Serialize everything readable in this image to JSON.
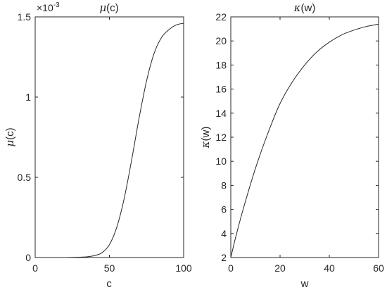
{
  "chart_data": [
    {
      "type": "line",
      "title_symbol": "μ",
      "title_rest": "(c)",
      "xlabel": "c",
      "ylabel_symbol": "μ",
      "ylabel_rest": "(c)",
      "xlim": [
        0,
        100
      ],
      "ylim": [
        0,
        0.0015
      ],
      "xticks": [
        0,
        50,
        100
      ],
      "xtick_labels": [
        "0",
        "50",
        "100"
      ],
      "yticks": [
        0,
        0.0005,
        0.001,
        0.0015
      ],
      "ytick_labels": [
        "0",
        "0.5",
        "1",
        "1.5"
      ],
      "exponent_base": "×10",
      "exponent_power": "-3",
      "grid": false,
      "series": [
        {
          "x": [
            0,
            10,
            20,
            30,
            35,
            40,
            45,
            50,
            55,
            60,
            65,
            70,
            75,
            80,
            85,
            90,
            95,
            100
          ],
          "y": [
            0,
            0,
            0,
            2e-06,
            5e-06,
            1.2e-05,
            3e-05,
            8e-05,
            0.00019,
            0.00037,
            0.00061,
            0.00087,
            0.0011,
            0.00127,
            0.00137,
            0.00142,
            0.00145,
            0.00146
          ]
        }
      ]
    },
    {
      "type": "line",
      "title_symbol": "κ",
      "title_rest": "(w)",
      "xlabel": "w",
      "ylabel_symbol": "κ",
      "ylabel_rest": "(w)",
      "xlim": [
        0,
        60
      ],
      "ylim": [
        2,
        22
      ],
      "xticks": [
        0,
        20,
        40,
        60
      ],
      "xtick_labels": [
        "0",
        "20",
        "40",
        "60"
      ],
      "yticks": [
        2,
        4,
        6,
        8,
        10,
        12,
        14,
        16,
        18,
        20,
        22
      ],
      "ytick_labels": [
        "2",
        "4",
        "6",
        "8",
        "10",
        "12",
        "14",
        "16",
        "18",
        "20",
        "22"
      ],
      "grid": false,
      "series": [
        {
          "x": [
            0,
            2,
            5,
            10,
            15,
            20,
            25,
            30,
            35,
            40,
            45,
            50,
            55,
            60
          ],
          "y": [
            2.0,
            3.7,
            6.0,
            9.4,
            12.3,
            14.8,
            16.6,
            18.0,
            19.1,
            19.9,
            20.5,
            20.9,
            21.2,
            21.4
          ]
        }
      ]
    }
  ]
}
